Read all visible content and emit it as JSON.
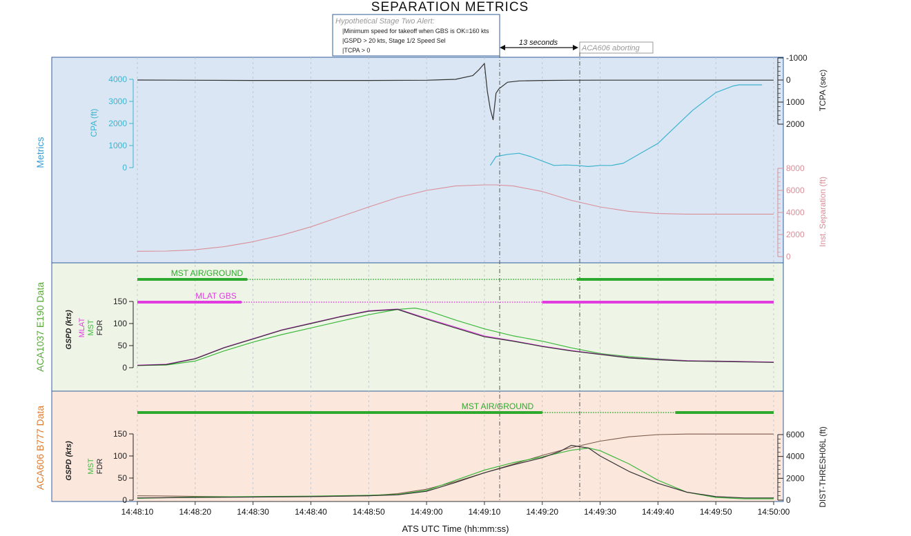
{
  "figure": {
    "title": "SEPARATION METRICS",
    "xlabel": "ATS UTC Time (hh:mm:ss)",
    "x_ticks": [
      "14:48:10",
      "14:48:20",
      "14:48:30",
      "14:48:40",
      "14:48:50",
      "14:49:00",
      "14:49:10",
      "14:49:20",
      "14:49:30",
      "14:49:40",
      "14:49:50",
      "14:50:00"
    ]
  },
  "alert_box": {
    "title": "Hypothetical Stage Two Alert:",
    "lines": [
      "|Minimum speed for takeoff when GBS is OK=160 kts",
      "|GSPD > 20 kts, Stage 1/2 Speed Sel",
      "|TCPA > 0"
    ]
  },
  "annotations": {
    "interval_label": "13 seconds",
    "abort_label": "ACA606 aborting"
  },
  "colors": {
    "metrics_bg": "#dae6f3",
    "aca1037_bg": "#eef5e6",
    "aca606_bg": "#fce7dd",
    "panel_border": "#2f5f9b",
    "cpa": "#3bb3cf",
    "tcpa": "#303030",
    "separation": "#d98f98",
    "mlat": "#e03ce0",
    "mst": "#3cb83c",
    "fdr": "#333333",
    "dist": "#7a5a4a",
    "air_ground_bar": "#2daa2d"
  },
  "chart_data": [
    {
      "type": "line",
      "panel_label": "Metrics",
      "x_unit": "seconds after 14:48:10",
      "axes": {
        "cpa": {
          "label": "CPA (ft)",
          "ticks": [
            0,
            1000,
            2000,
            3000,
            4000
          ]
        },
        "tcpa": {
          "label": "TCPA (sec)",
          "ticks": [
            -1000,
            0,
            1000,
            2000
          ]
        },
        "separation": {
          "label": "Inst. Separation (ft)",
          "ticks": [
            0,
            2000,
            4000,
            6000,
            8000
          ]
        }
      },
      "series": [
        {
          "name": "CPA (ft)",
          "axis": "cpa",
          "x": [
            61,
            62,
            64,
            66,
            68,
            70,
            72,
            74,
            76,
            78,
            80,
            82,
            84,
            86,
            88,
            90,
            92,
            94,
            96,
            98,
            100,
            102,
            103,
            104,
            105,
            106,
            107,
            108
          ],
          "y": [
            100,
            500,
            600,
            650,
            500,
            300,
            100,
            120,
            100,
            50,
            100,
            100,
            200,
            500,
            800,
            1100,
            1600,
            2100,
            2600,
            3000,
            3400,
            3600,
            3700,
            3750,
            3750,
            3750,
            3750,
            3750
          ]
        },
        {
          "name": "TCPA (sec)",
          "axis": "tcpa",
          "x": [
            0,
            10,
            20,
            30,
            40,
            50,
            55,
            58,
            59,
            60,
            60.5,
            61,
            61.5,
            62,
            62.5,
            64,
            66,
            70,
            75,
            80,
            90,
            100,
            110
          ],
          "y": [
            0,
            10,
            20,
            20,
            20,
            10,
            -30,
            -200,
            -450,
            -750,
            500,
            1300,
            1800,
            600,
            400,
            100,
            40,
            20,
            10,
            5,
            5,
            5,
            5
          ]
        },
        {
          "name": "Inst. Separation (ft)",
          "axis": "separation",
          "x": [
            0,
            5,
            10,
            15,
            20,
            25,
            30,
            35,
            40,
            45,
            50,
            55,
            60,
            62,
            65,
            70,
            75,
            80,
            85,
            90,
            95,
            100,
            110
          ],
          "y": [
            480,
            500,
            620,
            900,
            1350,
            1950,
            2700,
            3600,
            4500,
            5350,
            6000,
            6400,
            6500,
            6500,
            6400,
            5900,
            5100,
            4500,
            4100,
            3900,
            3850,
            3850,
            3850
          ]
        }
      ]
    },
    {
      "type": "line",
      "panel_label": "ACA1037 E190 Data",
      "ylabel": "GSPD (kts)",
      "y_ticks": [
        0,
        50,
        100,
        150
      ],
      "status_bars": [
        {
          "label": "MLAT GBS",
          "color_key": "mlat",
          "segments": [
            [
              0,
              18,
              "solid"
            ],
            [
              18,
              70,
              "dotted"
            ],
            [
              70,
              110,
              "solid"
            ]
          ]
        },
        {
          "label": "MST AIR/GROUND",
          "color_key": "mst",
          "segments": [
            [
              0,
              19,
              "solid"
            ],
            [
              19,
              76,
              "dotted"
            ],
            [
              76,
              110,
              "solid"
            ]
          ]
        }
      ],
      "series": [
        {
          "name": "FDR",
          "x": [
            0,
            5,
            10,
            15,
            20,
            25,
            30,
            35,
            40,
            45,
            50,
            55,
            60,
            65,
            70,
            75,
            80,
            85,
            90,
            95,
            100,
            105,
            110
          ],
          "y": [
            5,
            7,
            20,
            45,
            65,
            85,
            100,
            115,
            128,
            132,
            110,
            90,
            70,
            60,
            48,
            38,
            30,
            22,
            18,
            15,
            14,
            13,
            12
          ]
        },
        {
          "name": "MST",
          "x": [
            0,
            5,
            10,
            15,
            20,
            25,
            30,
            35,
            40,
            45,
            48,
            50,
            55,
            60,
            65,
            70,
            75,
            80,
            85,
            90,
            95,
            100,
            105,
            110
          ],
          "y": [
            5,
            6,
            15,
            38,
            58,
            75,
            90,
            105,
            120,
            132,
            135,
            130,
            108,
            88,
            72,
            60,
            45,
            32,
            25,
            20,
            16,
            15,
            14,
            12
          ]
        },
        {
          "name": "MLAT",
          "x": [
            0,
            5,
            10,
            15,
            20,
            25,
            30,
            35,
            40,
            45,
            50,
            55,
            60,
            65,
            70,
            75,
            80,
            85,
            90,
            95,
            100,
            105,
            110
          ],
          "y": [
            6,
            8,
            21,
            46,
            66,
            86,
            101,
            116,
            129,
            133,
            112,
            92,
            72,
            61,
            49,
            39,
            31,
            23,
            19,
            16,
            15,
            14,
            13
          ]
        }
      ]
    },
    {
      "type": "line",
      "panel_label": "ACA606 B777 Data",
      "ylabel": "GSPD (kts)",
      "y_ticks": [
        0,
        50,
        100,
        150
      ],
      "dist_axis": {
        "label": "DIST-THRESH06L (ft)",
        "ticks": [
          0,
          2000,
          4000,
          6000
        ]
      },
      "status_bars": [
        {
          "label": "MST AIR/GROUND",
          "color_key": "mst",
          "segments": [
            [
              0,
              70,
              "solid"
            ],
            [
              70,
              93,
              "dotted"
            ],
            [
              93,
              110,
              "solid"
            ]
          ]
        }
      ],
      "series": [
        {
          "name": "FDR",
          "x": [
            0,
            10,
            20,
            30,
            40,
            45,
            50,
            55,
            60,
            65,
            70,
            73,
            75,
            78,
            80,
            85,
            90,
            95,
            100,
            105,
            110
          ],
          "y": [
            5,
            6,
            7,
            8,
            10,
            12,
            20,
            40,
            62,
            80,
            96,
            110,
            124,
            118,
            100,
            65,
            38,
            18,
            8,
            5,
            5
          ]
        },
        {
          "name": "MST",
          "x": [
            0,
            10,
            20,
            30,
            40,
            45,
            50,
            55,
            60,
            65,
            70,
            75,
            78,
            80,
            85,
            90,
            95,
            100,
            105,
            110
          ],
          "y": [
            4,
            7,
            8,
            9,
            11,
            13,
            22,
            45,
            68,
            85,
            98,
            113,
            118,
            112,
            82,
            45,
            18,
            6,
            3,
            3
          ]
        },
        {
          "name": "DIST-THRESH06L (ft)",
          "axis": "dist",
          "x": [
            0,
            10,
            20,
            30,
            40,
            45,
            50,
            55,
            60,
            65,
            70,
            75,
            80,
            85,
            90,
            95,
            100,
            105,
            110
          ],
          "y": [
            400,
            350,
            300,
            320,
            400,
            600,
            1000,
            1700,
            2500,
            3300,
            4100,
            4800,
            5400,
            5800,
            6000,
            6050,
            6050,
            6050,
            6050
          ]
        }
      ]
    }
  ],
  "legend": {
    "aca1037_series_labels": [
      "MLAT",
      "MST",
      "FDR"
    ],
    "aca606_series_labels": [
      "MST",
      "FDR"
    ]
  }
}
